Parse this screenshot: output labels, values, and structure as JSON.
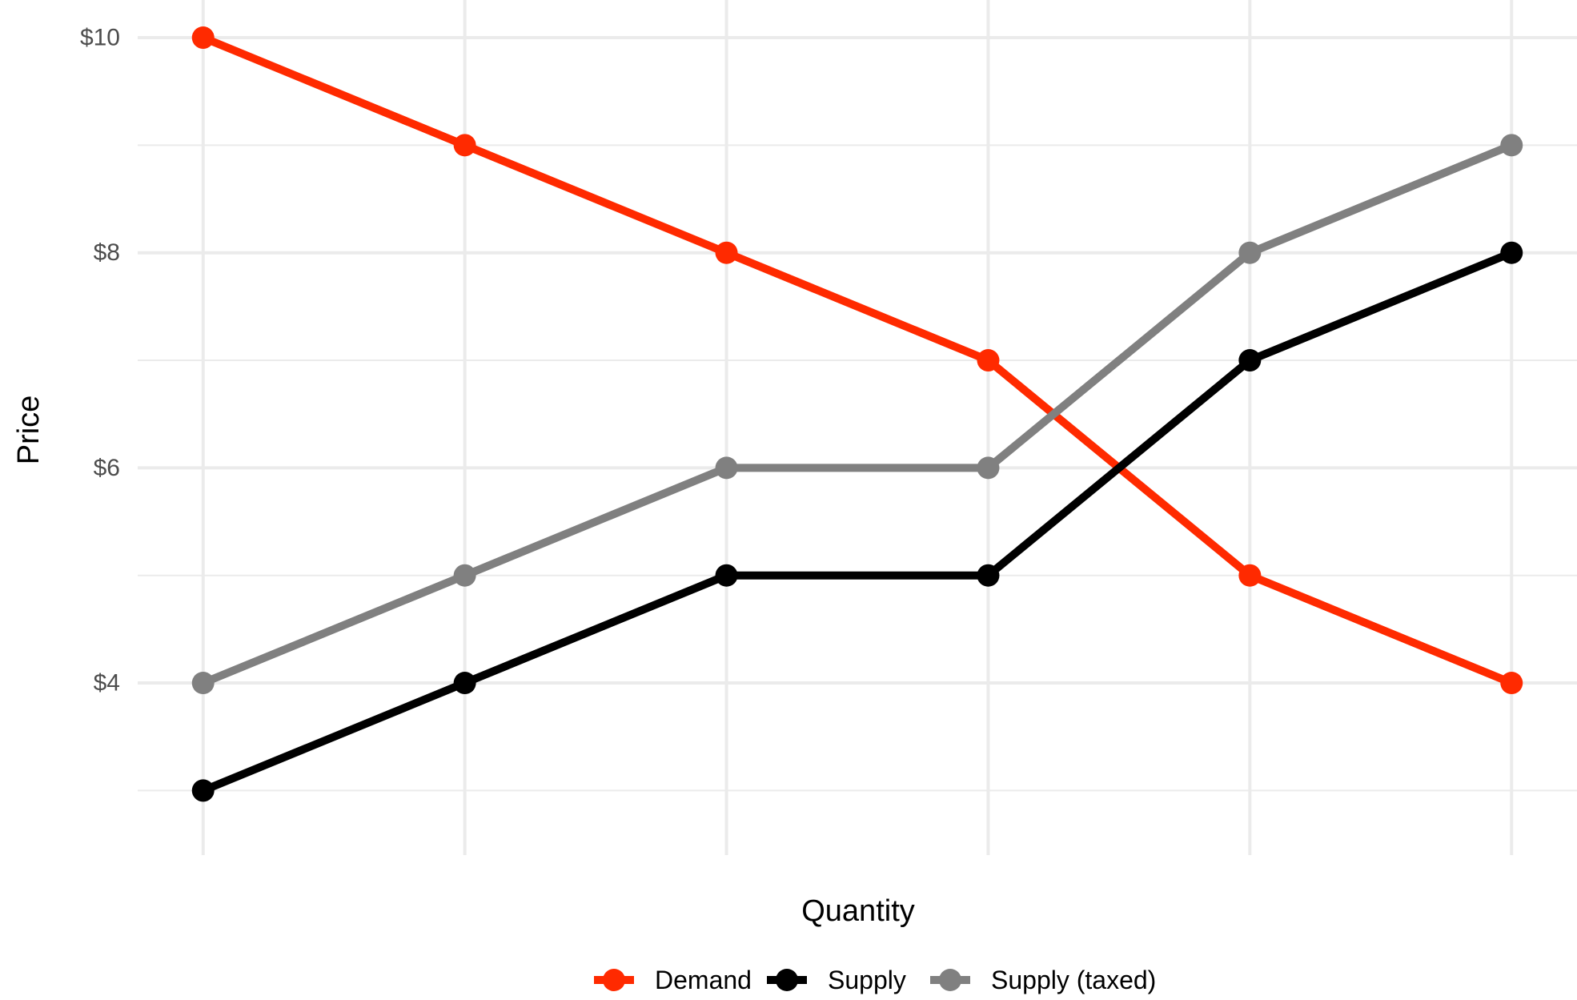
{
  "chart_data": {
    "type": "line",
    "title": "",
    "xlabel": "Quantity",
    "ylabel": "Price",
    "x": [
      1,
      2,
      3,
      4,
      5,
      6
    ],
    "xlim": [
      0.75,
      6.25
    ],
    "ylim": [
      2.4,
      10.35
    ],
    "y_ticks": [
      4,
      6,
      8,
      10
    ],
    "y_tick_labels": [
      "$4",
      "$6",
      "$8",
      "$10"
    ],
    "x_tick_labels_shown": false,
    "grid": true,
    "legend_position": "bottom",
    "series": [
      {
        "name": "Demand",
        "color": "#ff2a00",
        "values": [
          10,
          9,
          8,
          7,
          5,
          4
        ]
      },
      {
        "name": "Supply",
        "color": "#000000",
        "values": [
          3,
          4,
          5,
          5,
          7,
          8
        ]
      },
      {
        "name": "Supply (taxed)",
        "color": "#808080",
        "values": [
          4,
          5,
          6,
          6,
          8,
          9
        ]
      }
    ]
  }
}
